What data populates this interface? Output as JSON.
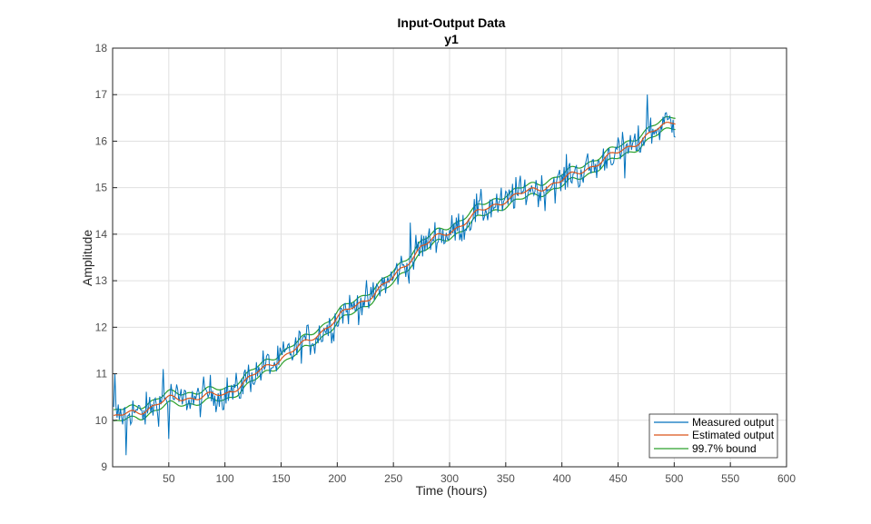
{
  "chart_data": {
    "type": "line",
    "title": "Input-Output Data",
    "subtitle": "y1",
    "xlabel": "Time (hours)",
    "ylabel": "Amplitude",
    "xlim": [
      0,
      600
    ],
    "ylim": [
      9,
      18
    ],
    "xticks": [
      50,
      100,
      150,
      200,
      250,
      300,
      350,
      400,
      450,
      500,
      550,
      600
    ],
    "yticks": [
      9,
      10,
      11,
      12,
      13,
      14,
      15,
      16,
      17,
      18
    ],
    "grid": true,
    "legend_position": "bottom-right",
    "noise_band": 0.35,
    "series": [
      {
        "name": "Measured output",
        "color": "#0072BD"
      },
      {
        "name": "Estimated output",
        "color": "#D95319"
      },
      {
        "name": "99.7% bound",
        "color": "#2CA02C"
      }
    ],
    "estimated_trend": {
      "x": [
        0,
        25,
        50,
        75,
        100,
        125,
        150,
        175,
        200,
        225,
        250,
        275,
        300,
        325,
        350,
        375,
        400,
        425,
        450,
        475,
        500
      ],
      "y": [
        10.05,
        10.2,
        10.45,
        10.5,
        10.55,
        10.95,
        11.35,
        11.7,
        12.2,
        12.6,
        13.05,
        13.75,
        14.05,
        14.45,
        14.75,
        14.95,
        15.15,
        15.45,
        15.75,
        16.1,
        16.45
      ]
    },
    "bound_half_width": 0.12,
    "measured_spikes": [
      {
        "x": 2,
        "y": 11.0
      },
      {
        "x": 12,
        "y": 9.25
      },
      {
        "x": 45,
        "y": 11.1
      },
      {
        "x": 50,
        "y": 9.6
      },
      {
        "x": 265,
        "y": 14.25
      },
      {
        "x": 476,
        "y": 17.0
      },
      {
        "x": 456,
        "y": 15.2
      }
    ]
  }
}
